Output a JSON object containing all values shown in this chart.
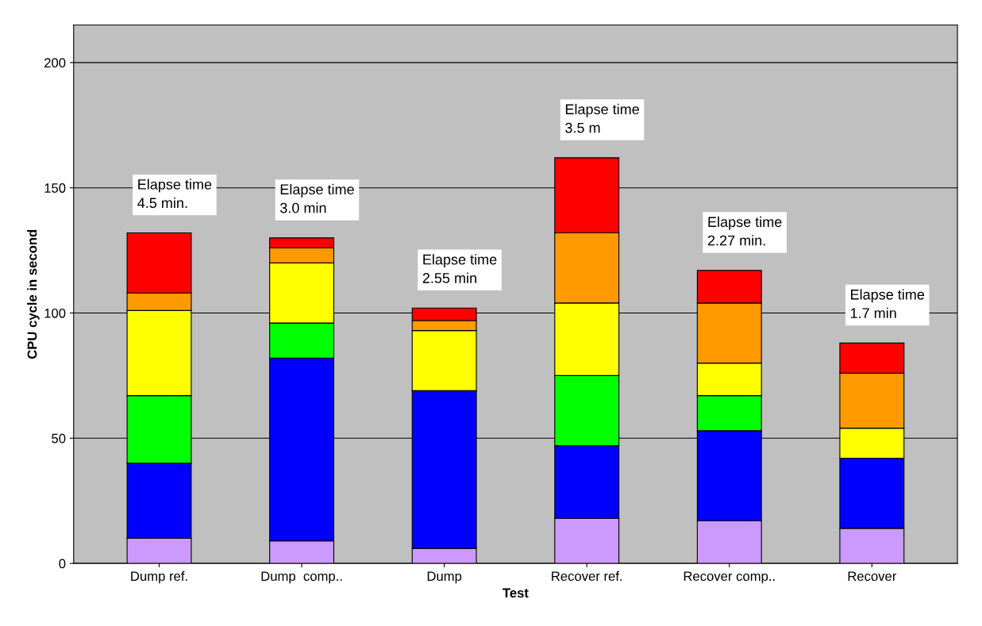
{
  "chart_data": {
    "type": "bar",
    "stacked": true,
    "xlabel": "Test",
    "ylabel": "CPU cycle in second",
    "categories": [
      "Dump ref.",
      "Dump  comp..",
      "Dump",
      "Recover ref.",
      "Recover comp..",
      "Recover"
    ],
    "series": [
      {
        "color": "#cc99ff",
        "values": [
          10,
          9,
          6,
          18,
          17,
          14
        ]
      },
      {
        "color": "#0000ff",
        "values": [
          30,
          73,
          63,
          29,
          36,
          28
        ]
      },
      {
        "color": "#00ff00",
        "values": [
          27,
          14,
          0,
          28,
          14,
          0
        ]
      },
      {
        "color": "#ffff00",
        "values": [
          34,
          24,
          24,
          29,
          13,
          12
        ]
      },
      {
        "color": "#ff9900",
        "values": [
          7,
          6,
          4,
          28,
          24,
          22
        ]
      },
      {
        "color": "#ff0000",
        "values": [
          24,
          4,
          5,
          30,
          13,
          12
        ]
      }
    ],
    "annotations": [
      {
        "text": "Elapse time\n4.5 min.",
        "x": "Dump ref.",
        "y": 132
      },
      {
        "text": "Elapse time\n3.0 min",
        "x": "Dump  comp..",
        "y": 130
      },
      {
        "text": "Elapse time\n2.55 min",
        "x": "Dump",
        "y": 102
      },
      {
        "text": "Elapse time\n3.5 m",
        "x": "Recover ref.",
        "y": 162
      },
      {
        "text": "Elapse time\n2.27 min.",
        "x": "Recover comp..",
        "y": 117
      },
      {
        "text": "Elapse time\n1.7 min",
        "x": "Recover",
        "y": 88
      }
    ],
    "ylim": [
      0,
      215
    ],
    "yticks": [
      0,
      50,
      100,
      150,
      200
    ],
    "grid": "y",
    "legend": false
  }
}
